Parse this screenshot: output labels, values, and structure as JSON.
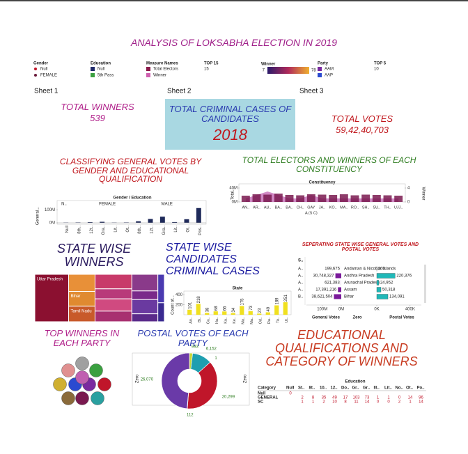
{
  "title": "ANALYSIS OF LOKSABHA ELECTION IN 2019",
  "filters": {
    "gender": {
      "title": "Gender",
      "items": [
        {
          "name": "Null",
          "color": "#c0162a"
        },
        {
          "name": "FEMALE",
          "color": "#6a1a3a"
        }
      ]
    },
    "education": {
      "title": "Education",
      "items": [
        {
          "name": "Null",
          "color": "#1f2a6a"
        },
        {
          "name": "5th Pass",
          "color": "#3aa040"
        }
      ]
    },
    "measure_names": {
      "title": "Measure Names",
      "items": [
        {
          "name": "Total Electors",
          "color": "#8a1a4a"
        },
        {
          "name": "Winner",
          "color": "#d060b0"
        }
      ]
    },
    "top15": {
      "title": "TOP 15",
      "value": 15
    },
    "winner": {
      "title": "Winner",
      "min": 7,
      "max": 78
    },
    "party": {
      "title": "Party",
      "items": [
        {
          "name": "AAM",
          "color": "#7a2aa0"
        },
        {
          "name": "AAP",
          "color": "#2a4ad0"
        }
      ]
    },
    "top5": {
      "title": "TOP 5",
      "value": 10
    }
  },
  "sheets": [
    "Sheet 1",
    "Sheet 2",
    "Sheet 3"
  ],
  "kpis": {
    "winners": {
      "title": "TOTAL WINNERS",
      "value": 539
    },
    "criminal": {
      "title": "TOTAL CRIMINAL CASES OF CANDIDATES",
      "value": 2018
    },
    "votes": {
      "title": "TOTAL VOTES",
      "value": "59,42,40,703"
    }
  },
  "gender_votes": {
    "type": "bar",
    "title": "CLASSIFYING GENERAL VOTES BY GENDER AND EDUCATIONAL QUALIFICATION",
    "header": "Gender / Education",
    "groups": [
      "N..",
      "FEMALE",
      "MALE"
    ],
    "y_label": "General...",
    "categories": [
      "Null",
      "8th..",
      "12t..",
      "Gra..",
      "Lit..",
      "Ot..",
      "8th..",
      "12t..",
      "Gra..",
      "Lit..",
      "Ot..",
      "Pos.."
    ],
    "values": [
      2,
      3,
      5,
      8,
      2,
      3,
      12,
      30,
      48,
      6,
      28,
      115
    ],
    "color": "#1f2a5a",
    "ylim": [
      0,
      130
    ],
    "yticks": [
      {
        "value": 0,
        "label": "0M"
      },
      {
        "value": 100,
        "label": "100M"
      }
    ]
  },
  "constituency": {
    "type": "bar",
    "title": "TOTAL ELECTORS AND WINNERS OF EACH CONSTITUENCY",
    "header": "Constituency",
    "y_label": "Total...",
    "y2_label": "Winner",
    "extra_label": "A (S C)",
    "categories": [
      "AN..",
      "AR..",
      "AU..",
      "BA..",
      "BA..",
      "CH..",
      "GAY",
      "JA..",
      "KO..",
      "MA..",
      "RO..",
      "SH..",
      "SU..",
      "TH..",
      "UJJ.."
    ],
    "series": [
      {
        "name": "Total Electors",
        "color": "#7a1a50",
        "values": [
          18,
          22,
          21,
          24,
          20,
          19,
          22,
          21,
          20,
          22,
          19,
          21,
          20,
          19,
          18
        ]
      },
      {
        "name": "Winner",
        "color": "#c060b0",
        "axis": "y2",
        "values": [
          1,
          2,
          3,
          2,
          1,
          1,
          2,
          1,
          1,
          1,
          1,
          1,
          1,
          1,
          1
        ]
      }
    ],
    "ylim": [
      0,
      50
    ],
    "yticks": [
      {
        "value": 0,
        "label": "0M"
      },
      {
        "value": 40,
        "label": "40M"
      }
    ],
    "y2lim": [
      0,
      5
    ],
    "y2ticks": [
      0,
      4
    ]
  },
  "state_winners": {
    "type": "treemap",
    "title": "STATE WISE WINNERS",
    "categories": [
      "Uttar Pradesh",
      null,
      "Bihar",
      "Tamil Nadu",
      null,
      null,
      null,
      null,
      null,
      null,
      null,
      null,
      null,
      null
    ],
    "values": [
      78,
      22,
      19,
      20,
      26,
      18,
      22,
      19,
      21,
      11,
      18,
      10,
      9,
      6
    ],
    "colors": [
      "#8b1030",
      "#e89038",
      "#e08a30",
      "#c85a2a",
      "#c83a6a",
      "#b83a7a",
      "#d04a80",
      "#a83070",
      "#8a3a8a",
      "#7a2a8a",
      "#6a3aa0",
      "#5a2a8a",
      "#4a3ab0",
      "#3a2a90"
    ]
  },
  "criminal_cases": {
    "type": "bar",
    "title": "STATE WISE CANDIDATES CRIMINAL CASES",
    "header": "State",
    "y_label": "Count of...",
    "categories": [
      "An..",
      "Bi..",
      "Gu..",
      "Ha..",
      "Ka..",
      "Ke..",
      "Ma..",
      "Ma..",
      "Od..",
      "Ra..",
      "Ta..",
      "Ut.."
    ],
    "values": [
      101,
      218,
      38,
      68,
      66,
      34,
      175,
      73,
      23,
      49,
      189,
      251
    ],
    "color": "#f0e020",
    "ylim": [
      0,
      420
    ],
    "yticks": [
      200,
      400
    ]
  },
  "state_votes": {
    "type": "table-bar",
    "title": "SEPERATING STATE WISE GENERAL VOTES AND POSTAL VOTES",
    "header": "S..",
    "columns": [
      "General Votes",
      "Zero",
      "Postal Votes"
    ],
    "rows": [
      {
        "abbr": "A..",
        "state": "Andaman & Nicobar Islands",
        "general": 199675,
        "general_label": "199,675",
        "postal": 200,
        "postal_label": "200"
      },
      {
        "abbr": "A..",
        "state": "Andhra Pradesh",
        "general": 30748327,
        "general_label": "30,748,327",
        "postal": 220376,
        "postal_label": "220,376"
      },
      {
        "abbr": "A..",
        "state": "Arunachal Pradesh",
        "general": 621383,
        "general_label": "621,383",
        "postal": 24952,
        "postal_label": "24,952"
      },
      {
        "abbr": "A..",
        "state": "Assam",
        "general": 17391216,
        "general_label": "17,391,216",
        "postal": 50318,
        "postal_label": "50,318"
      },
      {
        "abbr": "B..",
        "state": "Bihar",
        "general": 38621504,
        "general_label": "38,621,504",
        "postal": 134091,
        "postal_label": "134,091"
      }
    ],
    "general_color": "#7a1a9a",
    "postal_color": "#20b8b8",
    "general_lim": [
      0,
      110000000
    ],
    "general_ticks": [
      {
        "value": 100000000,
        "label": "100M"
      },
      {
        "value": 0,
        "label": "0M"
      }
    ],
    "postal_lim": [
      0,
      460000
    ],
    "postal_ticks": [
      {
        "value": 0,
        "label": "0K"
      },
      {
        "value": 400000,
        "label": "400K"
      }
    ]
  },
  "top_winners": {
    "title": "TOP WINNERS IN EACH PARTY"
  },
  "postal_party": {
    "type": "pie",
    "title": "POSTAL VOTES OF EACH PARTY",
    "axis_label": "Zero",
    "values": [
      993,
      6152,
      1,
      20299,
      112,
      26070
    ],
    "value_labels": [
      "993",
      "6,152",
      "1",
      "20,299",
      "112",
      "26,070"
    ],
    "colors": [
      "#c8d838",
      "#1f9fb0",
      "#2a4a80",
      "#c0162a",
      "#4a7a30",
      "#6a3aa8"
    ]
  },
  "education_table": {
    "title": "EDUCATIONAL QUALIFICATIONS AND CATEGORY OF WINNERS",
    "header": "Education",
    "columns": [
      "Category",
      "Null",
      "St..",
      "8t..",
      "10..",
      "12..",
      "Do..",
      "Gr..",
      "Gr..",
      "Ill..",
      "Lit..",
      "No..",
      "Ot..",
      "Po.."
    ],
    "rows": [
      [
        "Null",
        "0",
        null,
        null,
        null,
        null,
        null,
        null,
        null,
        null,
        null,
        null,
        null,
        null
      ],
      [
        "GENERAL",
        null,
        "2",
        "8",
        "35",
        "49",
        "17",
        "103",
        "73",
        "1",
        "1",
        "0",
        "14",
        "96"
      ],
      [
        "SC",
        null,
        "1",
        "1",
        "2",
        "10",
        "8",
        "11",
        "14",
        "0",
        "0",
        "2",
        "1",
        "14"
      ]
    ]
  }
}
